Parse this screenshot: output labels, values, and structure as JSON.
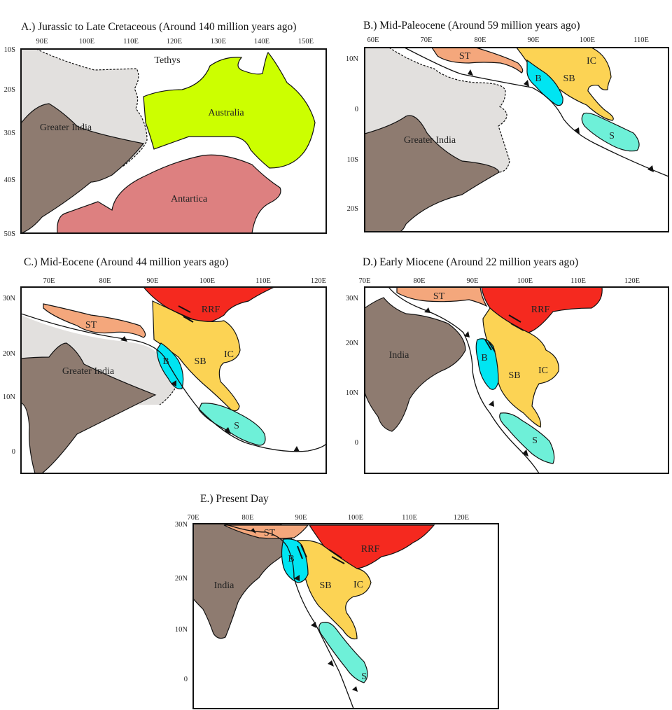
{
  "colors": {
    "greater_india_extent": "#e2e0de",
    "india": "#8e7b70",
    "australia": "#ccff00",
    "antarctica": "#dd8080",
    "ST": "#f4a77c",
    "SB_IC": "#fcd354",
    "B": "#00e5f2",
    "S": "#6ef0d8",
    "RRF": "#f5291f"
  },
  "panels": [
    {
      "title": "A.) Jurassic to Late Cretaceous (Around 140 million years ago)",
      "lon_ticks": [
        "90E",
        "100E",
        "110E",
        "120E",
        "130E",
        "140E",
        "150E"
      ],
      "lat_ticks": [
        "10S",
        "20S",
        "30S",
        "40S",
        "50S"
      ],
      "labels": {
        "tethys": "Tethys",
        "australia": "Australia",
        "greater_india": "Greater India",
        "antarctica": "Antartica"
      }
    },
    {
      "title": "B.) Mid-Paleocene (Around 59 million years ago)",
      "lon_ticks": [
        "60E",
        "70E",
        "80E",
        "90E",
        "100E",
        "110E"
      ],
      "lat_ticks": [
        "10N",
        "0",
        "10S",
        "20S"
      ],
      "labels": {
        "st": "ST",
        "ic": "IC",
        "b": "B",
        "sb": "SB",
        "s": "S",
        "greater_india": "Greater India"
      }
    },
    {
      "title": "C.) Mid-Eocene (Around 44 million years ago)",
      "lon_ticks": [
        "70E",
        "80E",
        "90E",
        "100E",
        "110E",
        "120E"
      ],
      "lat_ticks": [
        "30N",
        "20N",
        "10N",
        "0"
      ],
      "labels": {
        "rrf": "RRF",
        "st": "ST",
        "ic": "IC",
        "b": "B",
        "sb": "SB",
        "s": "S",
        "greater_india": "Greater India"
      }
    },
    {
      "title": "D.) Early Miocene (Around 22 million years ago)",
      "lon_ticks": [
        "70E",
        "80E",
        "90E",
        "100E",
        "110E",
        "120E"
      ],
      "lat_ticks": [
        "30N",
        "20N",
        "10N",
        "0"
      ],
      "labels": {
        "st": "ST",
        "rrf": "RRF",
        "india": "India",
        "b": "B",
        "sb": "SB",
        "ic": "IC",
        "s": "S"
      }
    },
    {
      "title": "E.) Present Day",
      "lon_ticks": [
        "70E",
        "80E",
        "90E",
        "100E",
        "110E",
        "120E"
      ],
      "lat_ticks": [
        "30N",
        "20N",
        "10N",
        "0"
      ],
      "labels": {
        "st": "ST",
        "rrf": "RRF",
        "b": "B",
        "india": "India",
        "sb": "SB",
        "ic": "IC",
        "s": "S"
      }
    }
  ]
}
